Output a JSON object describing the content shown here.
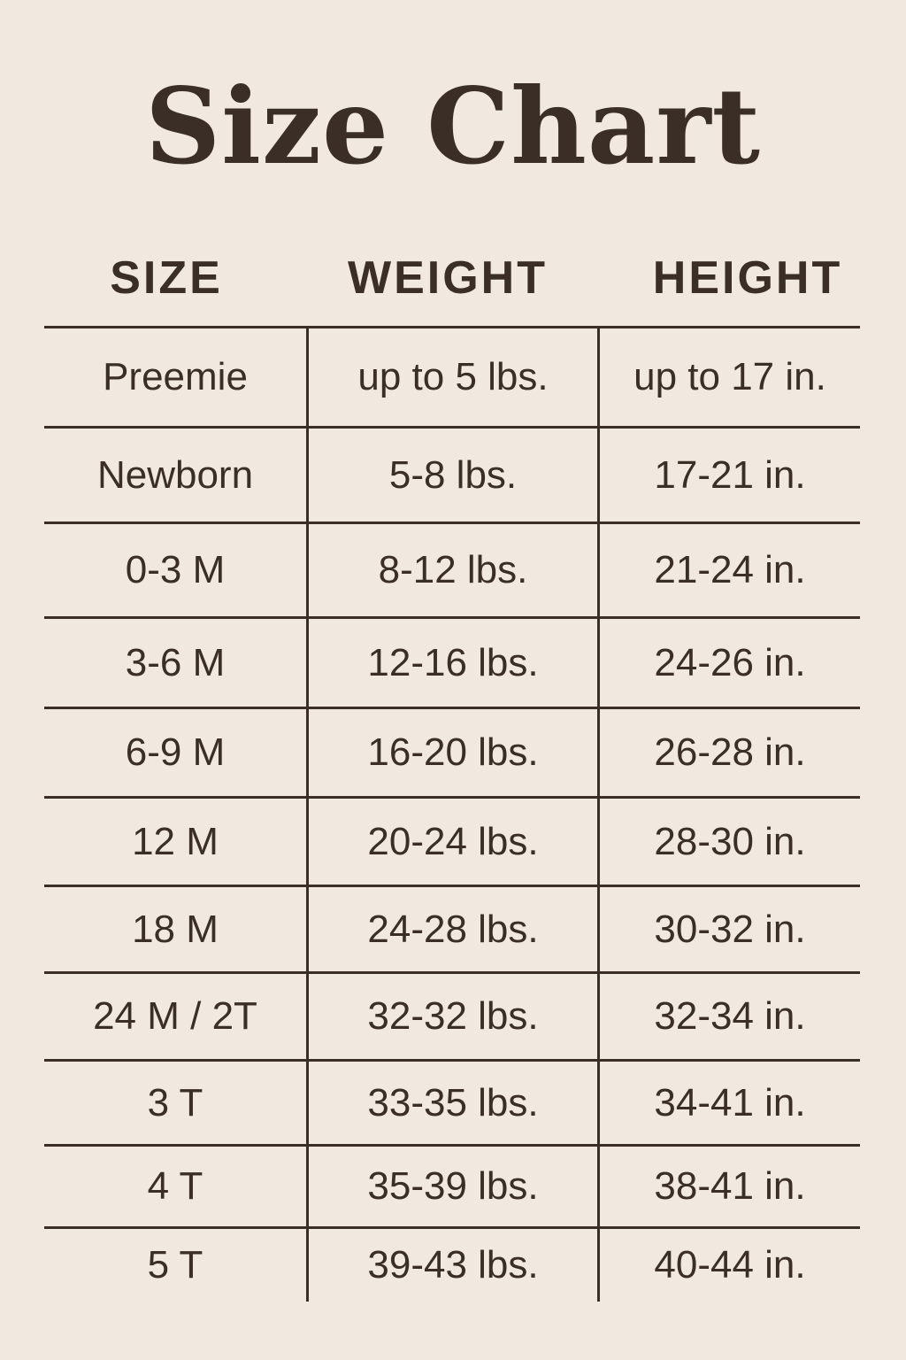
{
  "title": "Size Chart",
  "columns": [
    "SIZE",
    "WEIGHT",
    "HEIGHT"
  ],
  "rows": [
    [
      "Preemie",
      "up to 5 lbs.",
      "up to 17 in."
    ],
    [
      "Newborn",
      "5-8 lbs.",
      "17-21 in."
    ],
    [
      "0-3 M",
      "8-12 lbs.",
      "21-24 in."
    ],
    [
      "3-6 M",
      "12-16 lbs.",
      "24-26 in."
    ],
    [
      "6-9 M",
      "16-20 lbs.",
      "26-28 in."
    ],
    [
      "12 M",
      "20-24 lbs.",
      "28-30 in."
    ],
    [
      "18 M",
      "24-28 lbs.",
      "30-32 in."
    ],
    [
      "24 M / 2T",
      "32-32 lbs.",
      "32-34 in."
    ],
    [
      "3 T",
      "33-35 lbs.",
      "34-41 in."
    ],
    [
      "4 T",
      "35-39 lbs.",
      "38-41 in."
    ],
    [
      "5 T",
      "39-43 lbs.",
      "40-44 in."
    ]
  ],
  "colors": {
    "background": "#f1e9df",
    "text": "#3a2e26"
  }
}
